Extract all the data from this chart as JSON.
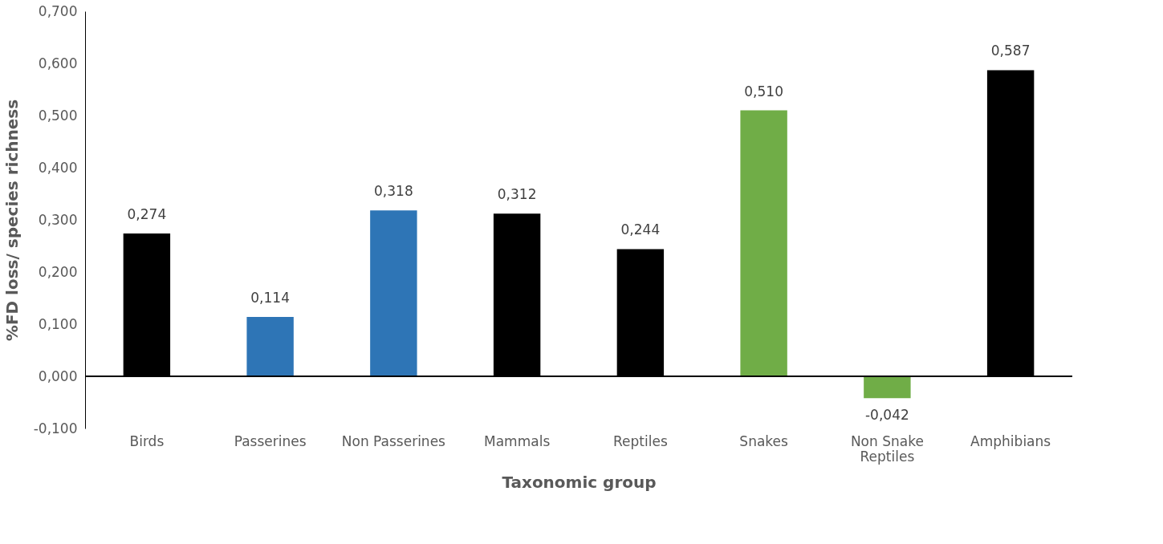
{
  "chart_data": {
    "type": "bar",
    "xlabel": "Taxonomic group",
    "ylabel": "%FD loss/ species richness",
    "categories": [
      "Birds",
      "Passerines",
      "Non Passerines",
      "Mammals",
      "Reptiles",
      "Snakes",
      "Non Snake Reptiles",
      "Amphibians"
    ],
    "values": [
      0.274,
      0.114,
      0.318,
      0.312,
      0.244,
      0.51,
      -0.042,
      0.587
    ],
    "colors": [
      "#000000",
      "#2e75b6",
      "#2e75b6",
      "#000000",
      "#000000",
      "#70ad47",
      "#70ad47",
      "#000000"
    ],
    "ylim": [
      -0.1,
      0.7
    ],
    "yticks": [
      {
        "value": -0.1,
        "label": "-0,100"
      },
      {
        "value": 0,
        "label": "0,000"
      },
      {
        "value": 0.1,
        "label": "0,100"
      },
      {
        "value": 0.2,
        "label": "0,200"
      },
      {
        "value": 0.3,
        "label": "0,300"
      },
      {
        "value": 0.4,
        "label": "0,400"
      },
      {
        "value": 0.5,
        "label": "0,500"
      },
      {
        "value": 0.6,
        "label": "0,600"
      },
      {
        "value": 0.7,
        "label": "0,700"
      }
    ],
    "value_labels": [
      "0,274",
      "0,114",
      "0,318",
      "0,312",
      "0,244",
      "0,510",
      "-0,042",
      "0,587"
    ]
  }
}
